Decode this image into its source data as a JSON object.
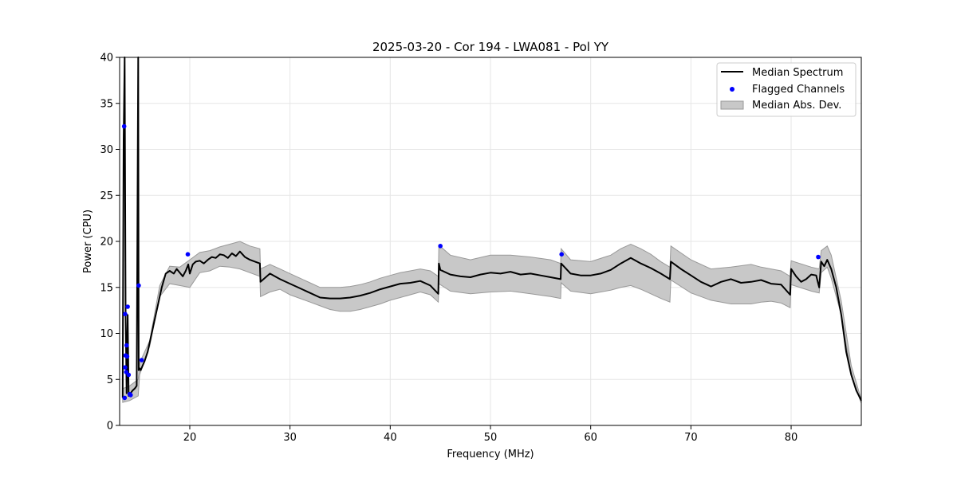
{
  "chart_data": {
    "type": "line",
    "title": "2025-03-20 - Cor 194 - LWA081 - Pol YY",
    "xlabel": "Frequency (MHz)",
    "ylabel": "Power (CPU)",
    "xlim": [
      13,
      87
    ],
    "ylim": [
      0,
      40
    ],
    "xticks": [
      20,
      30,
      40,
      50,
      60,
      70,
      80
    ],
    "yticks": [
      0,
      5,
      10,
      15,
      20,
      25,
      30,
      35,
      40
    ],
    "grid": true,
    "legend_position": "top-right",
    "legend": [
      "Median Spectrum",
      "Flagged Channels",
      "Median Abs. Dev."
    ],
    "colors": {
      "line": "#000000",
      "flagged": "#0000ff",
      "band": "#c8c8c8",
      "band_edge": "#999999"
    },
    "series": [
      {
        "name": "Median Spectrum",
        "x": [
          13.3,
          13.4,
          13.5,
          13.6,
          13.7,
          13.8,
          13.9,
          14.0,
          14.1,
          14.3,
          14.5,
          14.7,
          14.85,
          14.9,
          15.0,
          15.1,
          15.3,
          15.5,
          15.8,
          16.0,
          16.4,
          16.8,
          17.2,
          17.6,
          18.0,
          18.4,
          18.7,
          19.0,
          19.3,
          19.6,
          19.85,
          20.0,
          20.3,
          20.6,
          21.0,
          21.4,
          21.8,
          22.2,
          22.6,
          23.0,
          23.4,
          23.8,
          24.2,
          24.6,
          25.0,
          25.5,
          26.0,
          26.5,
          27.0,
          27.05,
          28.0,
          29.0,
          30.0,
          31.0,
          32.0,
          33.0,
          34.0,
          35.0,
          36.0,
          37.0,
          38.0,
          39.0,
          40.0,
          41.0,
          42.0,
          43.0,
          44.0,
          44.8,
          44.85,
          45.0,
          46.0,
          47.0,
          48.0,
          49.0,
          50.0,
          51.0,
          52.0,
          53.0,
          54.0,
          55.0,
          56.0,
          57.0,
          57.05,
          58.0,
          59.0,
          60.0,
          61.0,
          62.0,
          63.0,
          64.0,
          65.0,
          66.0,
          67.0,
          67.9,
          68.0,
          69.0,
          70.0,
          71.0,
          72.0,
          73.0,
          74.0,
          75.0,
          76.0,
          77.0,
          78.0,
          79.0,
          79.9,
          80.0,
          80.5,
          81.0,
          81.5,
          82.0,
          82.5,
          82.8,
          83.0,
          83.3,
          83.6,
          84.0,
          84.5,
          85.0,
          85.5,
          86.0,
          86.5,
          87.0
        ],
        "values": [
          3.0,
          31.0,
          40.0,
          12.0,
          3.5,
          12.0,
          3.2,
          3.3,
          3.5,
          3.8,
          4.0,
          4.3,
          40.0,
          6.0,
          6.2,
          6.0,
          6.5,
          7.0,
          8.0,
          9.0,
          11.0,
          13.0,
          15.0,
          16.5,
          16.8,
          16.5,
          17.0,
          16.6,
          16.2,
          16.8,
          17.5,
          16.5,
          17.5,
          17.8,
          17.9,
          17.6,
          18.0,
          18.3,
          18.2,
          18.6,
          18.5,
          18.2,
          18.7,
          18.4,
          18.9,
          18.3,
          18.0,
          17.8,
          17.6,
          15.6,
          16.5,
          15.9,
          15.4,
          14.9,
          14.4,
          13.9,
          13.8,
          13.8,
          13.9,
          14.1,
          14.4,
          14.8,
          15.1,
          15.4,
          15.5,
          15.7,
          15.2,
          14.3,
          17.6,
          16.9,
          16.4,
          16.2,
          16.1,
          16.4,
          16.6,
          16.5,
          16.7,
          16.4,
          16.5,
          16.3,
          16.1,
          15.9,
          17.6,
          16.5,
          16.3,
          16.3,
          16.5,
          16.9,
          17.6,
          18.2,
          17.6,
          17.1,
          16.5,
          15.9,
          17.8,
          17.0,
          16.3,
          15.6,
          15.1,
          15.6,
          15.9,
          15.5,
          15.6,
          15.8,
          15.4,
          15.3,
          14.2,
          17.0,
          16.2,
          15.6,
          15.9,
          16.4,
          16.3,
          15.0,
          17.8,
          17.3,
          18.0,
          17.0,
          15.0,
          12.0,
          8.0,
          5.5,
          3.8,
          2.7
        ]
      }
    ],
    "band": {
      "name": "Median Abs. Dev.",
      "x": [
        13.3,
        14.0,
        14.85,
        15.0,
        16.0,
        17.0,
        18.0,
        19.0,
        20.0,
        21.0,
        22.0,
        23.0,
        24.0,
        25.0,
        26.0,
        27.0,
        27.05,
        28.0,
        29.0,
        30.0,
        31.0,
        32.0,
        33.0,
        34.0,
        35.0,
        36.0,
        37.0,
        38.0,
        39.0,
        40.0,
        41.0,
        42.0,
        43.0,
        44.0,
        44.8,
        44.85,
        46.0,
        48.0,
        50.0,
        52.0,
        54.0,
        56.0,
        57.0,
        57.05,
        58.0,
        60.0,
        62.0,
        63.0,
        64.0,
        65.0,
        66.0,
        67.0,
        67.9,
        68.0,
        70.0,
        72.0,
        74.0,
        76.0,
        77.0,
        78.0,
        79.0,
        79.9,
        80.0,
        82.0,
        82.8,
        83.0,
        83.6,
        84.0,
        85.0,
        86.0,
        87.0
      ],
      "upper": [
        4.0,
        4.3,
        5.0,
        6.8,
        9.2,
        15.2,
        17.3,
        17.2,
        18.0,
        18.8,
        19.0,
        19.4,
        19.7,
        20.0,
        19.5,
        19.2,
        17.0,
        17.5,
        17.0,
        16.5,
        16.0,
        15.5,
        15.0,
        15.0,
        15.0,
        15.1,
        15.3,
        15.6,
        16.0,
        16.3,
        16.6,
        16.8,
        17.0,
        16.8,
        16.2,
        19.6,
        18.5,
        18.0,
        18.5,
        18.5,
        18.3,
        18.0,
        17.6,
        19.2,
        18.0,
        17.8,
        18.5,
        19.2,
        19.7,
        19.2,
        18.6,
        17.8,
        17.2,
        19.5,
        18.0,
        17.0,
        17.2,
        17.5,
        17.2,
        17.0,
        16.8,
        16.2,
        17.9,
        17.2,
        17.0,
        19.0,
        19.5,
        18.5,
        13.5,
        6.5,
        2.8
      ],
      "lower": [
        2.5,
        2.7,
        3.2,
        5.5,
        8.6,
        14.0,
        15.4,
        15.2,
        15.0,
        16.6,
        16.8,
        17.3,
        17.2,
        17.0,
        16.6,
        16.2,
        14.0,
        14.5,
        14.8,
        14.2,
        13.8,
        13.4,
        13.0,
        12.6,
        12.4,
        12.4,
        12.6,
        12.9,
        13.2,
        13.6,
        13.9,
        14.2,
        14.5,
        14.2,
        13.4,
        15.4,
        14.6,
        14.3,
        14.5,
        14.6,
        14.3,
        14.0,
        13.8,
        15.5,
        14.6,
        14.3,
        14.7,
        15.0,
        15.2,
        14.8,
        14.3,
        13.8,
        13.4,
        15.8,
        14.4,
        13.6,
        13.2,
        13.2,
        13.4,
        13.5,
        13.3,
        12.8,
        15.3,
        14.6,
        14.4,
        16.6,
        17.2,
        16.0,
        12.0,
        5.5,
        2.4
      ]
    },
    "flagged": {
      "name": "Flagged Channels",
      "x": [
        13.45,
        13.55,
        13.6,
        13.65,
        13.7,
        13.8,
        13.9,
        14.0,
        14.1,
        13.75,
        13.5,
        13.55,
        14.9,
        15.2,
        19.8,
        45.0,
        57.1,
        82.7
      ],
      "y": [
        32.5,
        12.1,
        7.6,
        5.8,
        8.7,
        12.9,
        5.5,
        3.4,
        3.3,
        7.5,
        3.0,
        6.3,
        15.2,
        7.1,
        18.6,
        19.5,
        18.6,
        18.3
      ]
    }
  }
}
